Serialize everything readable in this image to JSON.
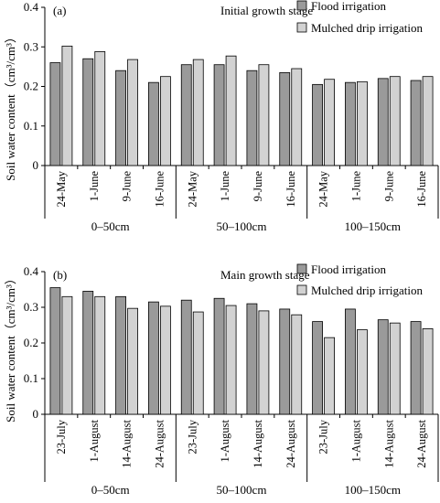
{
  "colors": {
    "flood": "#9a9a9a",
    "mulched": "#d2d2d2",
    "stroke": "#000000"
  },
  "ylabel_main": "Soil water content",
  "ylabel_unit": "(cm³/cm³)",
  "chart_data": [
    {
      "type": "bar",
      "panel_label": "(a)",
      "stage_title": "Initial growth stage",
      "ylabel": "Soil water content（cm³/cm³）",
      "ylim": [
        0,
        0.4
      ],
      "yticks": [
        "0",
        "0.1",
        "0.2",
        "0.3",
        "0.4"
      ],
      "grid": false,
      "legend_position": "top-right",
      "categories": [
        "24-May",
        "1-June",
        "9-June",
        "16-June",
        "24-May",
        "1-June",
        "9-June",
        "16-June",
        "24-May",
        "1-June",
        "9-June",
        "16-June"
      ],
      "groups": [
        "0–50cm",
        "50–100cm",
        "100–150cm"
      ],
      "series": [
        {
          "name": "Flood irrigation",
          "values": [
            0.26,
            0.27,
            0.24,
            0.21,
            0.255,
            0.255,
            0.24,
            0.235,
            0.205,
            0.21,
            0.22,
            0.215
          ]
        },
        {
          "name": "Mulched drip irrigation",
          "values": [
            0.302,
            0.288,
            0.268,
            0.225,
            0.268,
            0.277,
            0.255,
            0.245,
            0.218,
            0.212,
            0.225,
            0.225
          ]
        }
      ]
    },
    {
      "type": "bar",
      "panel_label": "(b)",
      "stage_title": "Main growth stage",
      "ylabel": "Soil water content（cm³/cm³）",
      "ylim": [
        0,
        0.4
      ],
      "yticks": [
        "0",
        "0.1",
        "0.2",
        "0.3",
        "0.4"
      ],
      "grid": false,
      "legend_position": "top-right",
      "categories": [
        "23-July",
        "1-August",
        "14-August",
        "24-August",
        "23-July",
        "1-August",
        "14-August",
        "24-August",
        "23-July",
        "1-August",
        "14-August",
        "24-August"
      ],
      "groups": [
        "0–50cm",
        "50–100cm",
        "100–150cm"
      ],
      "series": [
        {
          "name": "Flood irrigation",
          "values": [
            0.355,
            0.345,
            0.33,
            0.315,
            0.32,
            0.325,
            0.31,
            0.295,
            0.26,
            0.295,
            0.265,
            0.26
          ]
        },
        {
          "name": "Mulched drip irrigation",
          "values": [
            0.33,
            0.33,
            0.297,
            0.303,
            0.287,
            0.305,
            0.29,
            0.279,
            0.215,
            0.237,
            0.256,
            0.24
          ]
        }
      ]
    }
  ]
}
